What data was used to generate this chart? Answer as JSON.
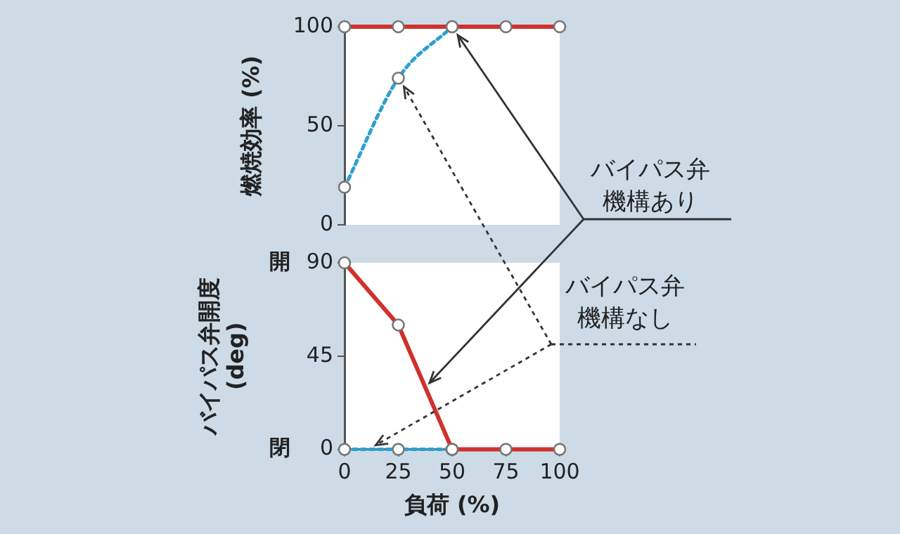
{
  "chart_data": [
    {
      "type": "line",
      "ylabel": "燃焼効率 (%)",
      "x": [
        0,
        25,
        50,
        75,
        100
      ],
      "xlim": [
        0,
        100
      ],
      "ylim": [
        0,
        100
      ],
      "yticks": [
        0,
        50,
        100
      ],
      "tick_labels": "y",
      "grid": false,
      "legend": false,
      "marker": "circle",
      "series": [
        {
          "color": "#d0312d",
          "line_style": "solid",
          "values": [
            100,
            100,
            100,
            100,
            100
          ]
        },
        {
          "color": "#2e9fd0",
          "line_style": "dotted",
          "values": [
            19,
            74,
            100,
            null,
            null
          ]
        }
      ],
      "annotations": [
        {
          "text": "バイパス弁機構あり",
          "x": 50,
          "y": 100
        },
        {
          "text": "バイパス弁機構なし",
          "x": 25,
          "y": 74
        }
      ]
    },
    {
      "type": "line",
      "xlabel": "負荷 (%)",
      "ylabel": "バイパス弁開度 (deg)",
      "x": [
        0,
        25,
        50,
        75,
        100
      ],
      "xlim": [
        0,
        100
      ],
      "xticks": [
        0,
        25,
        50,
        75,
        100
      ],
      "ylim": [
        0,
        90
      ],
      "yticks": [
        0,
        45,
        90
      ],
      "grid": false,
      "legend": false,
      "marker": "circle",
      "series": [
        {
          "color": "#d0312d",
          "line_style": "solid",
          "values": [
            90,
            60,
            0,
            0,
            0
          ]
        },
        {
          "color": "#2e9fd0",
          "line_style": "dotted",
          "values": [
            0,
            0,
            0,
            null,
            null
          ]
        }
      ],
      "annotations": [
        "開",
        "閉"
      ]
    }
  ]
}
